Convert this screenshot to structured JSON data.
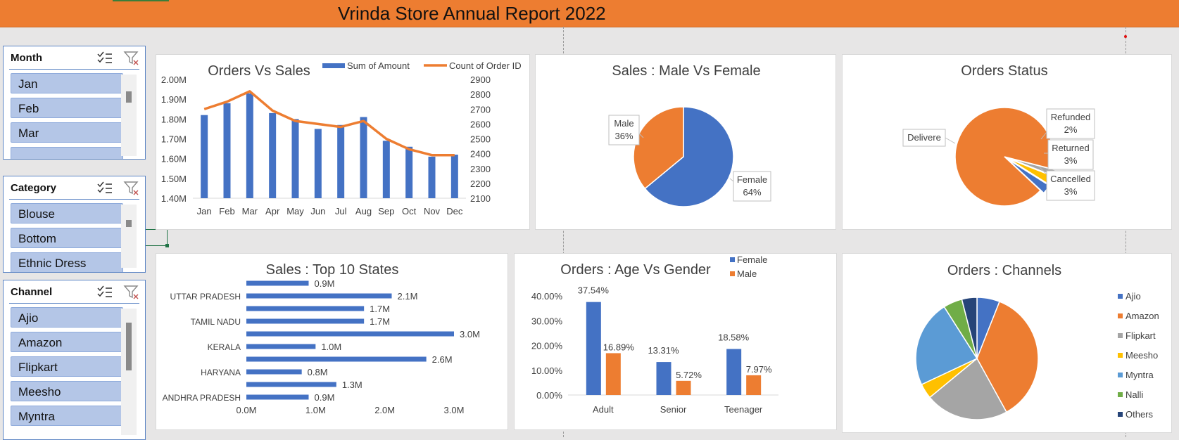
{
  "report_title": "Vrinda Store Annual Report 2022",
  "slicers": {
    "month": {
      "title": "Month",
      "items": [
        "Jan",
        "Feb",
        "Mar",
        ""
      ]
    },
    "category": {
      "title": "Category",
      "items": [
        "Blouse",
        "Bottom",
        "Ethnic Dress"
      ]
    },
    "channel": {
      "title": "Channel",
      "items": [
        "Ajio",
        "Amazon",
        "Flipkart",
        "Meesho",
        "Myntra"
      ]
    }
  },
  "colors": {
    "blue": "#4472c4",
    "orange": "#ed7d31",
    "gray": "#a5a5a5",
    "yellow": "#ffc000",
    "lightblue": "#5b9bd5",
    "green": "#70ad47",
    "navy": "#264478"
  },
  "chart_data": [
    {
      "id": "orders_vs_sales",
      "type": "bar",
      "title": "Orders Vs Sales",
      "categories": [
        "Jan",
        "Feb",
        "Mar",
        "Apr",
        "May",
        "Jun",
        "Jul",
        "Aug",
        "Sep",
        "Oct",
        "Nov",
        "Dec"
      ],
      "series": [
        {
          "name": "Sum of Amount",
          "type": "bar",
          "axis": "left",
          "values": [
            1.82,
            1.88,
            1.93,
            1.83,
            1.8,
            1.75,
            1.77,
            1.81,
            1.69,
            1.66,
            1.61,
            1.62
          ]
        },
        {
          "name": "Count of Order ID",
          "type": "line",
          "axis": "right",
          "values": [
            2700,
            2750,
            2820,
            2690,
            2620,
            2600,
            2580,
            2620,
            2500,
            2430,
            2390,
            2390
          ]
        }
      ],
      "ylim_left": [
        1.4,
        2.0
      ],
      "yticks_left": [
        "1.40M",
        "1.50M",
        "1.60M",
        "1.70M",
        "1.80M",
        "1.90M",
        "2.00M"
      ],
      "ylim_right": [
        2100,
        2900
      ],
      "yticks_right": [
        "2100",
        "2200",
        "2300",
        "2400",
        "2500",
        "2600",
        "2700",
        "2800",
        "2900"
      ],
      "legend": "top-right"
    },
    {
      "id": "sales_gender",
      "type": "pie",
      "title": "Sales : Male Vs Female",
      "slices": [
        {
          "label": "Female",
          "value": 64,
          "text": "64%"
        },
        {
          "label": "Male",
          "value": 36,
          "text": "36%"
        }
      ]
    },
    {
      "id": "orders_status",
      "type": "pie",
      "title": "Orders Status",
      "slices": [
        {
          "label": "Delivere",
          "value": 92,
          "text": ""
        },
        {
          "label": "Refunded",
          "value": 2,
          "text": "2%"
        },
        {
          "label": "Returned",
          "value": 3,
          "text": "3%"
        },
        {
          "label": "Cancelled",
          "value": 3,
          "text": "3%"
        }
      ]
    },
    {
      "id": "top_states",
      "type": "bar",
      "orientation": "horizontal",
      "title": "Sales : Top 10 States",
      "categories": [
        "ANDHRA PRADESH",
        "",
        "HARYANA",
        "",
        "KERALA",
        "",
        "TAMIL NADU",
        "",
        "UTTAR PRADESH",
        ""
      ],
      "values": [
        0.9,
        1.3,
        0.8,
        2.6,
        1.0,
        3.0,
        1.7,
        1.7,
        2.1,
        0.9
      ],
      "value_labels": [
        "0.9M",
        "1.3M",
        "0.8M",
        "2.6M",
        "1.0M",
        "3.0M",
        "1.7M",
        "1.7M",
        "2.1M",
        "0.9M"
      ],
      "xlim": [
        0,
        3.0
      ],
      "xticks": [
        "0.0M",
        "1.0M",
        "2.0M",
        "3.0M"
      ]
    },
    {
      "id": "age_gender",
      "type": "bar",
      "title": "Orders : Age Vs Gender",
      "categories": [
        "Adult",
        "Senior",
        "Teenager"
      ],
      "series": [
        {
          "name": "Female",
          "values": [
            37.54,
            13.31,
            18.58
          ],
          "labels": [
            "37.54%",
            "13.31%",
            "18.58%"
          ]
        },
        {
          "name": "Male",
          "values": [
            16.89,
            5.72,
            7.97
          ],
          "labels": [
            "16.89%",
            "5.72%",
            "7.97%"
          ]
        }
      ],
      "ylim": [
        0,
        40
      ],
      "yticks": [
        "0.00%",
        "10.00%",
        "20.00%",
        "30.00%",
        "40.00%"
      ],
      "legend": "top-right"
    },
    {
      "id": "channels",
      "type": "pie",
      "title": "Orders : Channels",
      "slices": [
        {
          "label": "Ajio",
          "value": 6
        },
        {
          "label": "Amazon",
          "value": 36
        },
        {
          "label": "Flipkart",
          "value": 22
        },
        {
          "label": "Meesho",
          "value": 4
        },
        {
          "label": "Myntra",
          "value": 23
        },
        {
          "label": "Nalli",
          "value": 5
        },
        {
          "label": "Others",
          "value": 4
        }
      ],
      "legend": "right"
    }
  ]
}
